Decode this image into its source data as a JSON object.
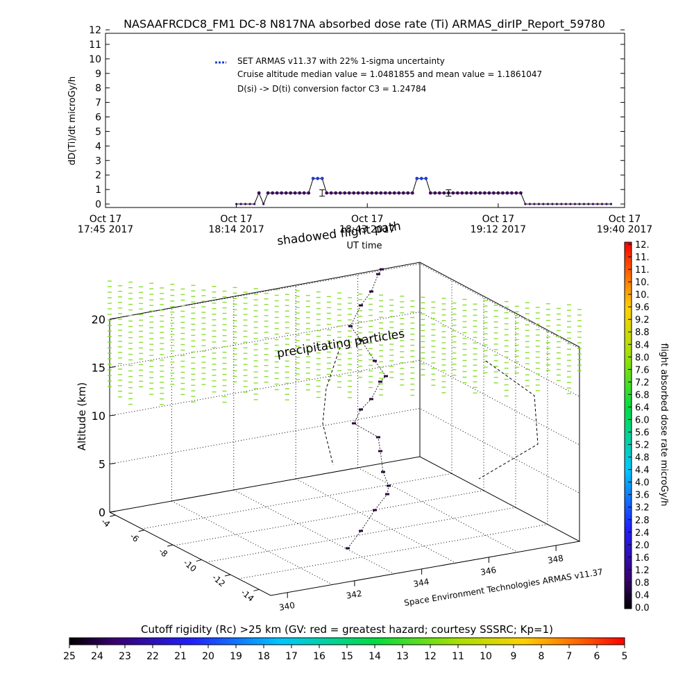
{
  "title": "NASAAFRCDC8_FM1 DC-8   N817NA absorbed dose rate (Ti) ARMAS_dirIP_Report_59780",
  "top_chart": {
    "ylabel": "dD(Ti)/dt microGy/h",
    "xlabel": "UT time",
    "legend_series": "SET ARMAS v11.37 with 22% 1-sigma uncertainty",
    "legend_line2": "Cruise altitude median value = 1.0481855 and mean value = 1.1861047",
    "legend_line3": "D(si) -> D(ti) conversion factor C3 = 1.24784",
    "x_ticks": [
      {
        "t": 0,
        "line1": "Oct 17",
        "line2": "17:45 2017"
      },
      {
        "t": 29,
        "line1": "Oct 17",
        "line2": "18:14 2017"
      },
      {
        "t": 58,
        "line1": "Oct 17",
        "line2": "18:43 2017"
      },
      {
        "t": 87,
        "line1": "Oct 17",
        "line2": "19:12 2017"
      },
      {
        "t": 115,
        "line1": "Oct 17",
        "line2": "19:40 2017"
      }
    ],
    "y_ticks": [
      "0",
      "1",
      "2",
      "3",
      "4",
      "5",
      "6",
      "7",
      "8",
      "9",
      "10",
      "11",
      "12"
    ]
  },
  "chart_data": [
    {
      "type": "line",
      "title": "NASAAFRCDC8_FM1 DC-8   N817NA absorbed dose rate (Ti) ARMAS_dirIP_Report_59780",
      "xlabel": "UT time",
      "ylabel": "dD(Ti)/dt microGy/h",
      "x_unit": "minutes after Oct 17 17:45 2017 UT",
      "ylim": [
        0,
        12
      ],
      "xlim": [
        0,
        115
      ],
      "series": [
        {
          "name": "SET ARMAS v11.37 with 22% 1-sigma uncertainty",
          "x": [
            29,
            30,
            31,
            32,
            33,
            34,
            35,
            36,
            37,
            38,
            39,
            40,
            41,
            42,
            43,
            44,
            45,
            46,
            47,
            48,
            49,
            50,
            51,
            52,
            53,
            54,
            55,
            56,
            57,
            58,
            59,
            60,
            61,
            62,
            63,
            64,
            65,
            66,
            67,
            68,
            69,
            70,
            71,
            72,
            73,
            74,
            75,
            76,
            77,
            78,
            79,
            80,
            81,
            82,
            83,
            84,
            85,
            86,
            87,
            88,
            89,
            90,
            91,
            92,
            93,
            94,
            95,
            96,
            97,
            98,
            99,
            100,
            101,
            102,
            103,
            104,
            105,
            106,
            107,
            108,
            109,
            110,
            111,
            112
          ],
          "y": [
            0,
            0,
            0,
            0,
            0,
            1,
            0,
            1,
            1,
            1,
            1,
            1,
            1,
            1,
            1,
            1,
            1,
            2,
            2,
            2,
            1,
            1,
            1,
            1,
            1,
            1,
            1,
            1,
            1,
            1,
            1,
            1,
            1,
            1,
            1,
            1,
            1,
            1,
            1,
            1,
            2,
            2,
            2,
            1,
            1,
            1,
            1,
            1,
            1,
            1,
            1,
            1,
            1,
            1,
            1,
            1,
            1,
            1,
            1,
            1,
            1,
            1,
            1,
            1,
            0,
            0,
            0,
            0,
            0,
            0,
            0,
            0,
            0,
            0,
            0,
            0,
            0,
            0,
            0,
            0,
            0,
            0,
            0,
            0
          ]
        }
      ],
      "error_bars": [
        {
          "x": 48,
          "y": 1,
          "err": 0.22
        },
        {
          "x": 76,
          "y": 1,
          "err": 0.22
        }
      ]
    },
    {
      "type": "scatter",
      "title": "",
      "ylabel": "Altitude (km)",
      "z_ticks": [
        "0",
        "5",
        "10",
        "15",
        "20"
      ],
      "lat_ticks": [
        "-14",
        "-12",
        "-10",
        "-8",
        "-6",
        "-4"
      ],
      "lon_ticks": [
        "340",
        "342",
        "344",
        "346",
        "348"
      ],
      "annotations": [
        "shadowed flight path",
        "precipitating particles"
      ],
      "credit": "Space Environment Technologies ARMAS v11.37"
    }
  ],
  "colorbar_right": {
    "label": "flight absorbed dose rate microGy/h",
    "ticks": [
      "0.0",
      "0.4",
      "0.8",
      "1.2",
      "1.6",
      "2.0",
      "2.4",
      "2.8",
      "3.2",
      "3.6",
      "4.0",
      "4.4",
      "4.8",
      "5.2",
      "5.6",
      "6.0",
      "6.4",
      "6.8",
      "7.2",
      "7.6",
      "8.0",
      "8.4",
      "8.8",
      "9.2",
      "9.6",
      "10.",
      "10.",
      "11.",
      "11.",
      "12."
    ]
  },
  "colorbar_bottom": {
    "label": "Cutoff rigidity (Rc) >25 km (GV: red = greatest hazard; courtesy SSSRC; Kp=1)",
    "ticks": [
      "25",
      "24",
      "23",
      "22",
      "21",
      "20",
      "19",
      "18",
      "17",
      "16",
      "15",
      "14",
      "13",
      "12",
      "11",
      "10",
      "9",
      "8",
      "7",
      "6",
      "5"
    ]
  },
  "colors": {
    "marker": "#3a0a5a",
    "legend_marker": "#1f3fd6",
    "curtain": "#86e02a"
  }
}
